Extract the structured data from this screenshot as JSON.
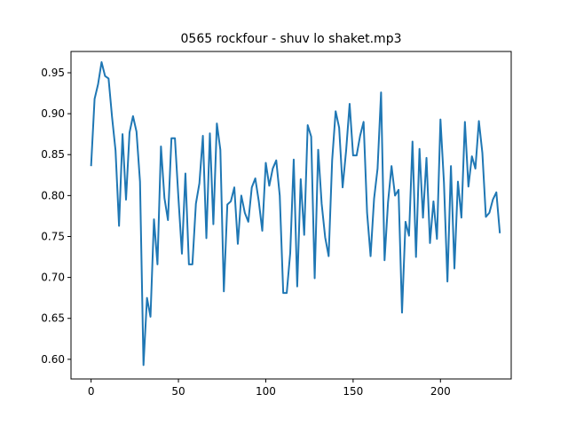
{
  "chart_data": {
    "type": "line",
    "title": "0565 rockfour - shuv lo shaket.mp3",
    "xlabel": "",
    "ylabel": "",
    "xlim": [
      -11.5,
      240.5
    ],
    "ylim": [
      0.576,
      0.976
    ],
    "x_ticks": [
      0,
      50,
      100,
      150,
      200
    ],
    "x_tick_labels": [
      "0",
      "50",
      "100",
      "150",
      "200"
    ],
    "y_ticks": [
      0.6,
      0.65,
      0.7,
      0.75,
      0.8,
      0.85,
      0.9,
      0.95
    ],
    "y_tick_labels": [
      "0.60",
      "0.65",
      "0.70",
      "0.75",
      "0.80",
      "0.85",
      "0.90",
      "0.95"
    ],
    "grid": false,
    "line_color": "#1f77b4",
    "series": [
      {
        "values": [
          0.836,
          0.918,
          0.936,
          0.963,
          0.946,
          0.943,
          0.896,
          0.855,
          0.763,
          0.875,
          0.795,
          0.877,
          0.897,
          0.878,
          0.817,
          0.593,
          0.675,
          0.652,
          0.771,
          0.716,
          0.86,
          0.797,
          0.77,
          0.87,
          0.87,
          0.797,
          0.729,
          0.827,
          0.716,
          0.716,
          0.79,
          0.815,
          0.873,
          0.748,
          0.876,
          0.765,
          0.888,
          0.856,
          0.683,
          0.789,
          0.793,
          0.81,
          0.741,
          0.8,
          0.779,
          0.768,
          0.81,
          0.821,
          0.793,
          0.757,
          0.84,
          0.812,
          0.833,
          0.843,
          0.8,
          0.681,
          0.681,
          0.73,
          0.844,
          0.689,
          0.82,
          0.752,
          0.886,
          0.872,
          0.699,
          0.856,
          0.79,
          0.749,
          0.726,
          0.843,
          0.903,
          0.883,
          0.81,
          0.855,
          0.912,
          0.849,
          0.849,
          0.873,
          0.89,
          0.779,
          0.726,
          0.796,
          0.833,
          0.926,
          0.721,
          0.792,
          0.836,
          0.8,
          0.807,
          0.657,
          0.768,
          0.751,
          0.866,
          0.725,
          0.857,
          0.773,
          0.846,
          0.742,
          0.793,
          0.747,
          0.893,
          0.816,
          0.695,
          0.836,
          0.711,
          0.817,
          0.773,
          0.89,
          0.811,
          0.848,
          0.833,
          0.891,
          0.852,
          0.774,
          0.779,
          0.795,
          0.804,
          0.754
        ]
      }
    ]
  }
}
